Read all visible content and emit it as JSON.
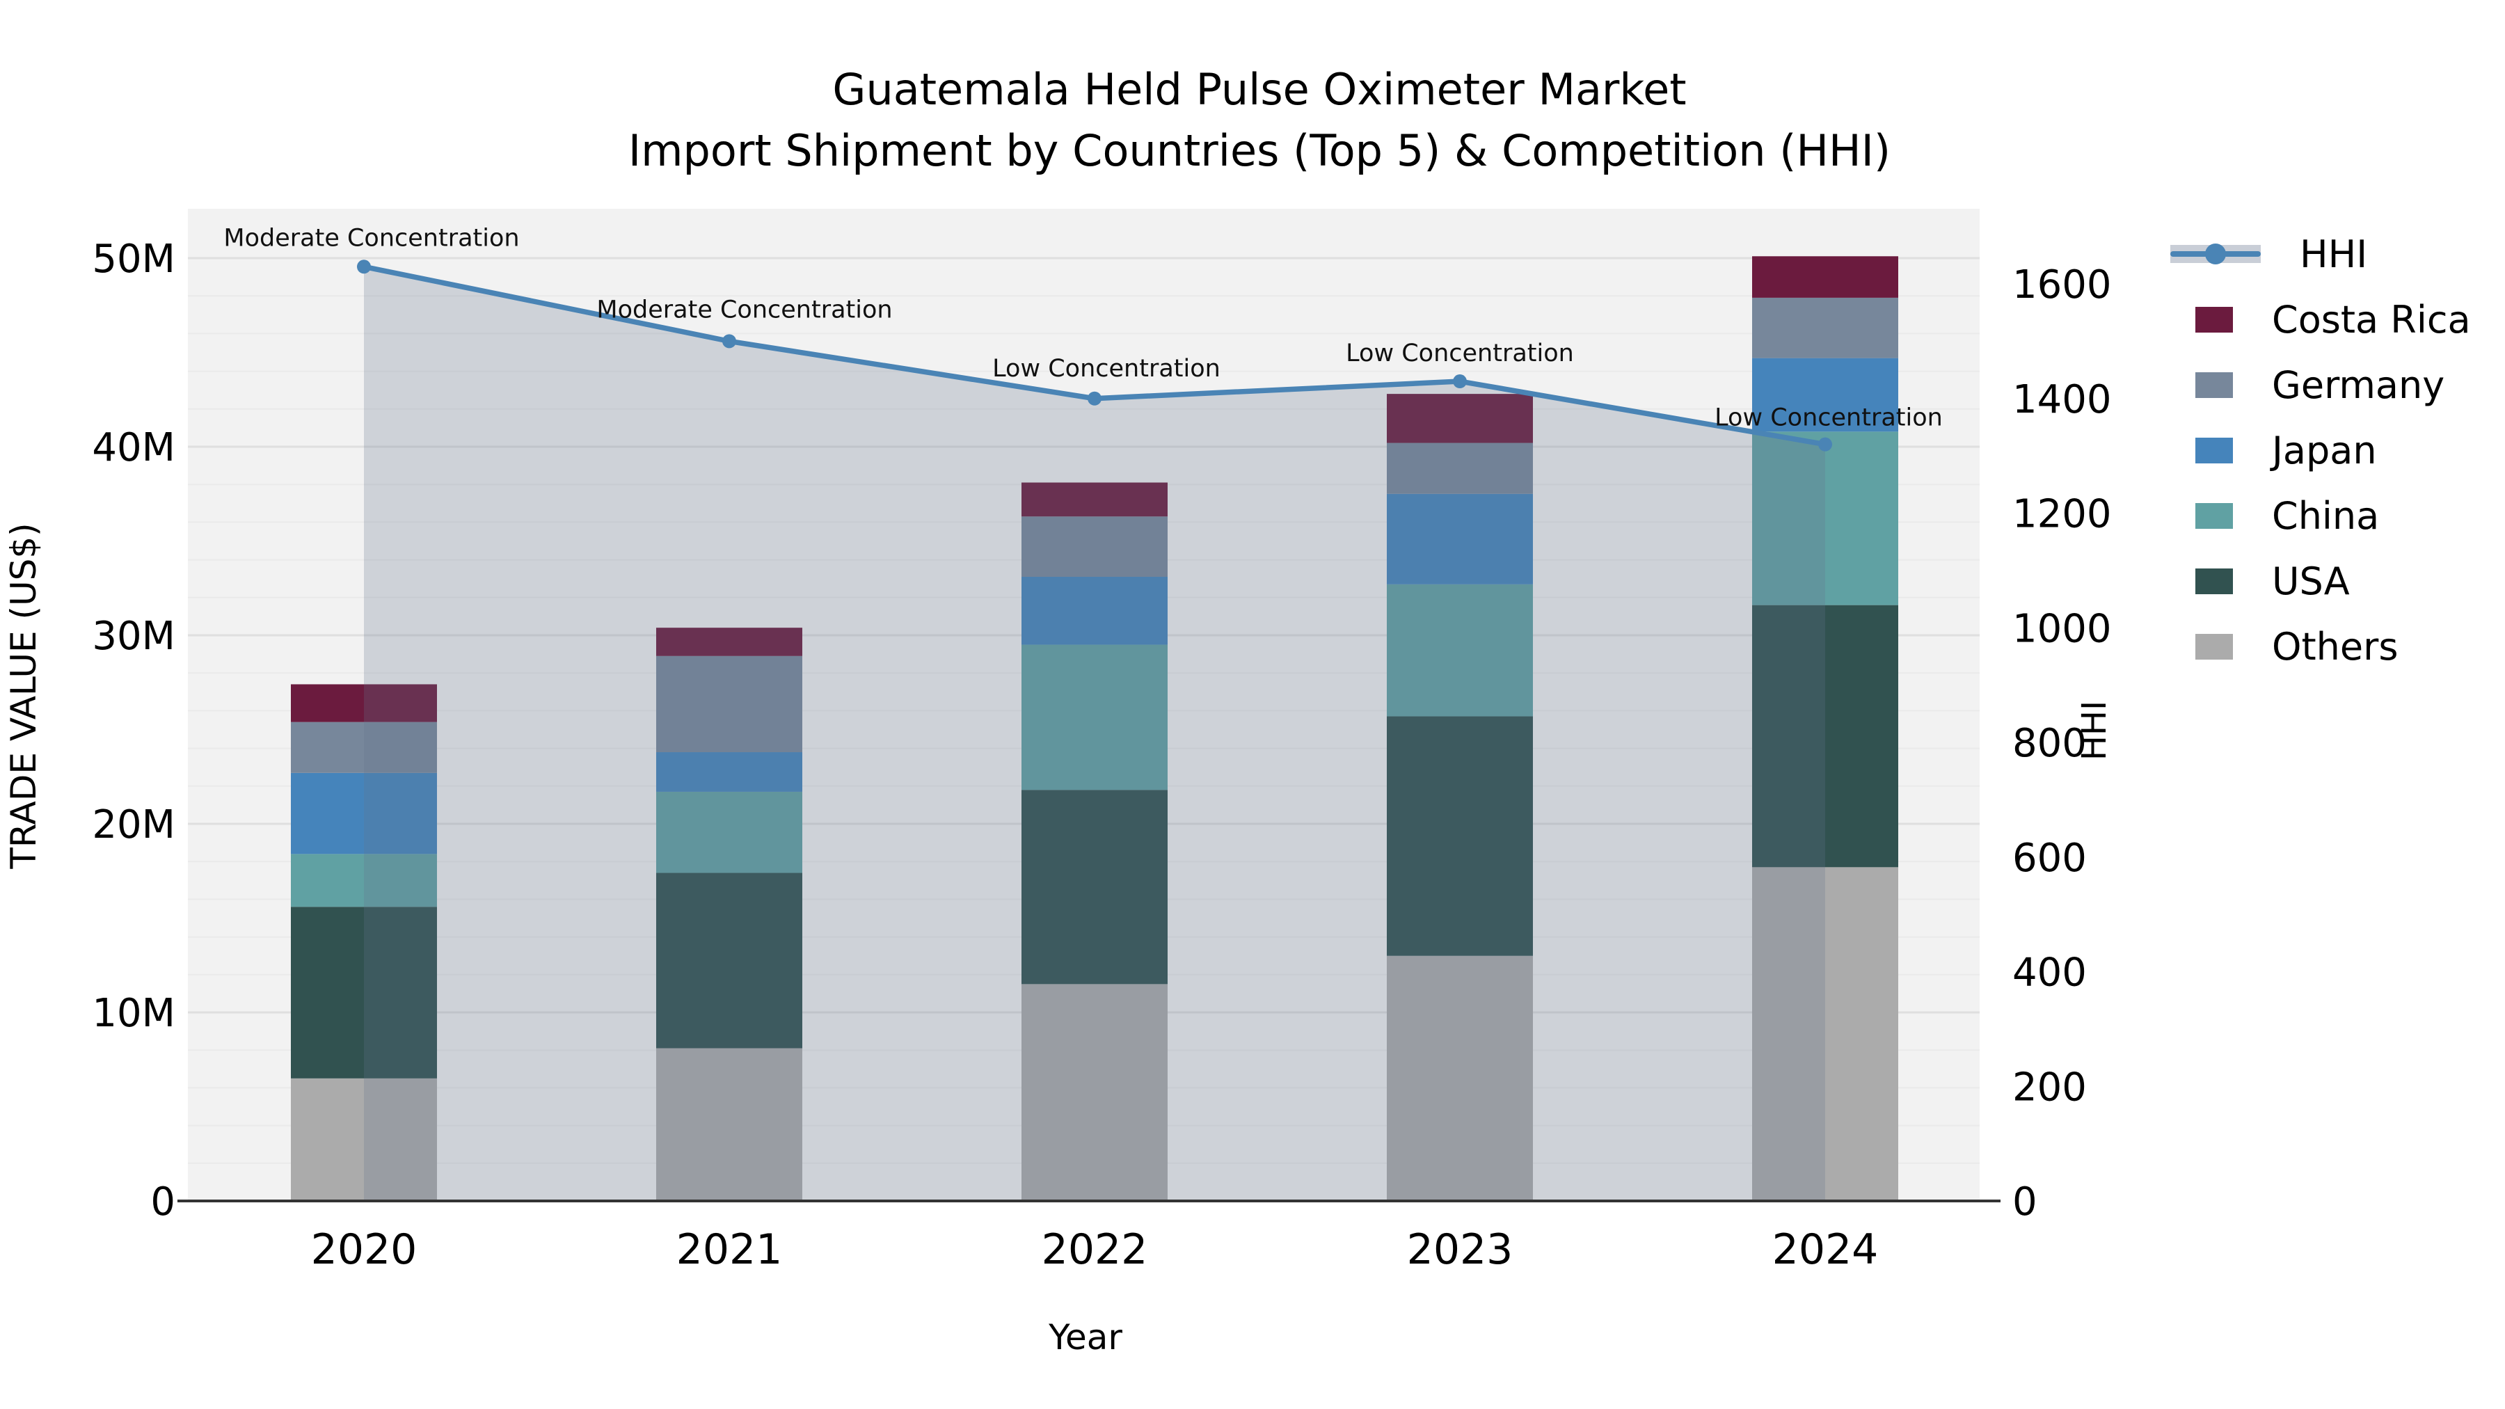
{
  "title": {
    "line1": "Guatemala Held Pulse Oximeter Market",
    "line2": "Import Shipment by Countries (Top 5) & Competition (HHI)"
  },
  "axes": {
    "y_left_label": "TRADE VALUE (US$)",
    "y_right_label": "HHI",
    "x_label": "Year",
    "y_left_ticks": [
      {
        "value": 0,
        "label": "0"
      },
      {
        "value": 10,
        "label": "10M"
      },
      {
        "value": 20,
        "label": "20M"
      },
      {
        "value": 30,
        "label": "30M"
      },
      {
        "value": 40,
        "label": "40M"
      },
      {
        "value": 50,
        "label": "50M"
      }
    ],
    "y_right_ticks": [
      {
        "value": 0,
        "label": "0"
      },
      {
        "value": 200,
        "label": "200"
      },
      {
        "value": 400,
        "label": "400"
      },
      {
        "value": 600,
        "label": "600"
      },
      {
        "value": 800,
        "label": "800"
      },
      {
        "value": 1000,
        "label": "1000"
      },
      {
        "value": 1200,
        "label": "1200"
      },
      {
        "value": 1400,
        "label": "1400"
      },
      {
        "value": 1600,
        "label": "1600"
      }
    ],
    "y_left_range_M": [
      0,
      50
    ],
    "y_right_range": [
      0,
      1600
    ],
    "grid": true
  },
  "legend": {
    "items": [
      {
        "label": "HHI",
        "type": "line",
        "color": "#4A84B5"
      },
      {
        "label": "Costa Rica",
        "type": "patch",
        "color": "#6B1B3E"
      },
      {
        "label": "Germany",
        "type": "patch",
        "color": "#77879B"
      },
      {
        "label": "Japan",
        "type": "patch",
        "color": "#4584BB"
      },
      {
        "label": "China",
        "type": "patch",
        "color": "#60A1A3"
      },
      {
        "label": "USA",
        "type": "patch",
        "color": "#315250"
      },
      {
        "label": "Others",
        "type": "patch",
        "color": "#ABABAB"
      }
    ]
  },
  "chart_data": {
    "type": "bar",
    "subtype": "stacked bars (trade value, left axis) + HHI line with shaded area (right axis)",
    "title": "Guatemala Held Pulse Oximeter Market — Import Shipment by Countries (Top 5) & Competition (HHI)",
    "xlabel": "Year",
    "ylabel_left": "TRADE VALUE (US$)",
    "ylabel_right": "HHI",
    "categories": [
      "2020",
      "2021",
      "2022",
      "2023",
      "2024"
    ],
    "value_unit": "millions of US$",
    "stack_order_bottom_to_top": [
      "Others",
      "USA",
      "China",
      "Japan",
      "Germany",
      "Costa Rica"
    ],
    "series": [
      {
        "name": "Others",
        "color": "#ABABAB",
        "values": [
          6.5,
          8.1,
          11.5,
          13.0,
          17.7
        ]
      },
      {
        "name": "USA",
        "color": "#315250",
        "values": [
          9.1,
          9.3,
          10.3,
          12.7,
          13.9
        ]
      },
      {
        "name": "China",
        "color": "#60A1A3",
        "values": [
          2.8,
          4.3,
          7.7,
          7.0,
          9.2
        ]
      },
      {
        "name": "Japan",
        "color": "#4584BB",
        "values": [
          4.3,
          2.1,
          3.6,
          4.8,
          3.9
        ]
      },
      {
        "name": "Germany",
        "color": "#77879B",
        "values": [
          2.7,
          5.1,
          3.2,
          2.7,
          3.2
        ]
      },
      {
        "name": "Costa Rica",
        "color": "#6B1B3E",
        "values": [
          2.0,
          1.5,
          1.8,
          2.6,
          2.2
        ]
      }
    ],
    "totals_M": [
      27.4,
      30.4,
      38.1,
      42.8,
      50.1
    ],
    "hhi_line": {
      "name": "HHI",
      "color": "#4A84B5",
      "area_fill": "rgba(100,115,140,0.25)",
      "values": [
        1630,
        1500,
        1400,
        1430,
        1320
      ]
    },
    "annotations": [
      {
        "year": "2020",
        "text": "Moderate Concentration"
      },
      {
        "year": "2021",
        "text": "Moderate Concentration"
      },
      {
        "year": "2022",
        "text": "Low Concentration"
      },
      {
        "year": "2023",
        "text": "Low Concentration"
      },
      {
        "year": "2024",
        "text": "Low Concentration"
      }
    ],
    "plot_background": "#F2F2F2",
    "legend_position": "right"
  }
}
